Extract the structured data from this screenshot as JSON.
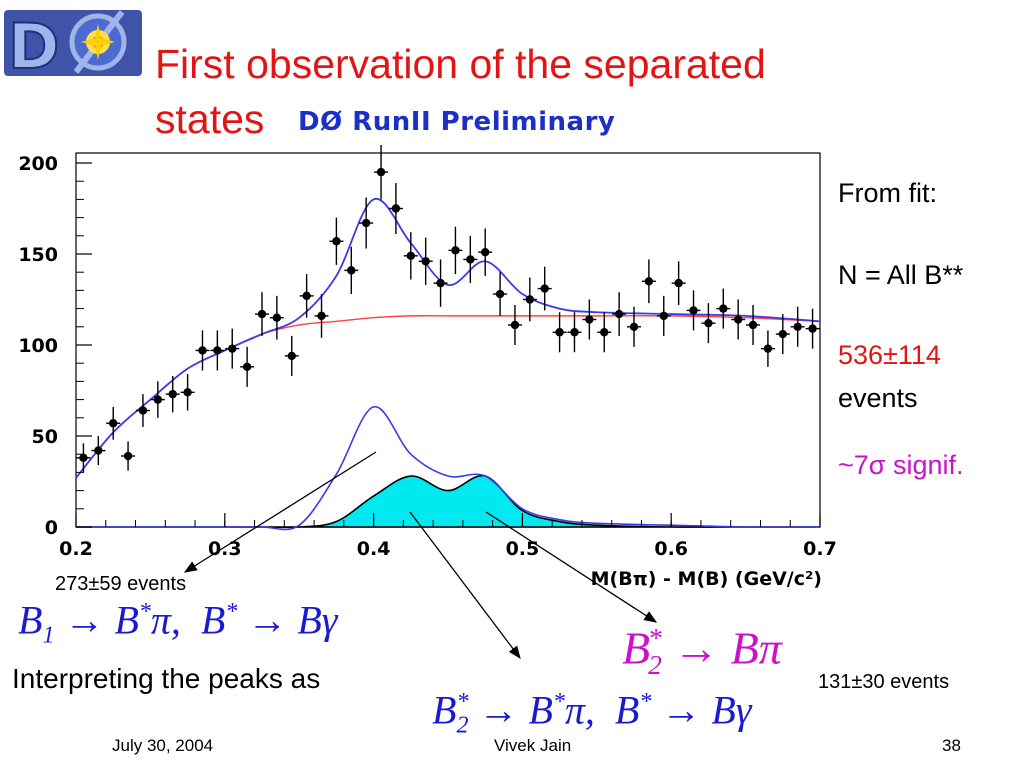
{
  "title_line1": "First observation of the separated",
  "title_line2": "states",
  "preliminary_label": "DØ RunII  Preliminary",
  "logo_text": "DØ",
  "sidebar": {
    "from_fit": "From fit:",
    "n_all": "N = All B**",
    "yield": "536±114",
    "yield_unit": "events",
    "significance": "~7σ signif."
  },
  "annotations": {
    "peak1_events": "273±59 events",
    "peak2_events": "131±30 events",
    "interpreting": "Interpreting the peaks as"
  },
  "formulas": {
    "b1": "B1 → B*π,  B* → Bγ",
    "b2_bpi": "B2* → Bπ",
    "b2_bstar": "B2* → B*π,  B* → Bγ"
  },
  "footer": {
    "date": "July 30, 2004",
    "author": "Vivek Jain",
    "page": "38"
  },
  "colors": {
    "title": "#e31414",
    "preliminary": "#1c30c8",
    "total_fit": "#3a3ae8",
    "background_fit": "#ff4040",
    "signal_fill": "#00e8f0",
    "significance": "#cc11cc",
    "formula_blue": "#1a1ad0"
  },
  "chart_data": {
    "type": "scatter",
    "xlabel": "M(Bπ) - M(B) (GeV/c²)",
    "xlim": [
      0.2,
      0.7
    ],
    "ylim": [
      0,
      200
    ],
    "xticks": [
      "0.2",
      "0.3",
      "0.4",
      "0.5",
      "0.6",
      "0.7"
    ],
    "yticks": [
      "0",
      "50",
      "100",
      "150",
      "200"
    ],
    "data_points": {
      "x": [
        0.205,
        0.215,
        0.225,
        0.235,
        0.245,
        0.255,
        0.265,
        0.275,
        0.285,
        0.295,
        0.305,
        0.315,
        0.325,
        0.335,
        0.345,
        0.355,
        0.365,
        0.375,
        0.385,
        0.395,
        0.405,
        0.415,
        0.425,
        0.435,
        0.445,
        0.455,
        0.465,
        0.475,
        0.485,
        0.495,
        0.505,
        0.515,
        0.525,
        0.535,
        0.545,
        0.555,
        0.565,
        0.575,
        0.585,
        0.595,
        0.605,
        0.615,
        0.625,
        0.635,
        0.645,
        0.655,
        0.665,
        0.675,
        0.685,
        0.695
      ],
      "y": [
        38,
        42,
        57,
        39,
        64,
        70,
        73,
        74,
        97,
        97,
        98,
        88,
        117,
        115,
        94,
        127,
        116,
        157,
        141,
        167,
        195,
        175,
        149,
        146,
        134,
        152,
        147,
        151,
        128,
        111,
        125,
        131,
        107,
        107,
        114,
        107,
        117,
        110,
        135,
        116,
        134,
        119,
        112,
        120,
        114,
        111,
        98,
        106,
        110,
        109
      ],
      "errors": [
        8,
        8,
        9,
        8,
        9,
        10,
        10,
        10,
        11,
        11,
        11,
        11,
        12,
        12,
        11,
        12,
        12,
        13,
        13,
        14,
        15,
        14,
        13,
        13,
        13,
        13,
        13,
        13,
        12,
        11,
        12,
        12,
        11,
        11,
        11,
        11,
        12,
        11,
        12,
        11,
        12,
        11,
        11,
        11,
        11,
        11,
        10,
        11,
        11,
        11
      ]
    },
    "curves": {
      "x": [
        0.2,
        0.225,
        0.25,
        0.275,
        0.3,
        0.325,
        0.35,
        0.375,
        0.4,
        0.425,
        0.45,
        0.475,
        0.5,
        0.525,
        0.55,
        0.6,
        0.65,
        0.7
      ],
      "background_fit": [
        27,
        52,
        70,
        87,
        97,
        106,
        111,
        113,
        115,
        116,
        116,
        116,
        116,
        116,
        116,
        116,
        115,
        113
      ],
      "total_fit": [
        27,
        52,
        70,
        87,
        97,
        106,
        115,
        138,
        180,
        156,
        133,
        146,
        128,
        120,
        118,
        117,
        116,
        113
      ],
      "component_total": [
        0,
        0,
        0,
        0,
        0,
        0,
        1,
        29,
        66,
        40,
        28,
        28,
        10,
        4,
        2,
        1,
        0,
        0
      ],
      "signal_filled": [
        0,
        0,
        0,
        0,
        0,
        0,
        0,
        3,
        17,
        28,
        20,
        28,
        9,
        3,
        1,
        0,
        0,
        0
      ]
    }
  }
}
